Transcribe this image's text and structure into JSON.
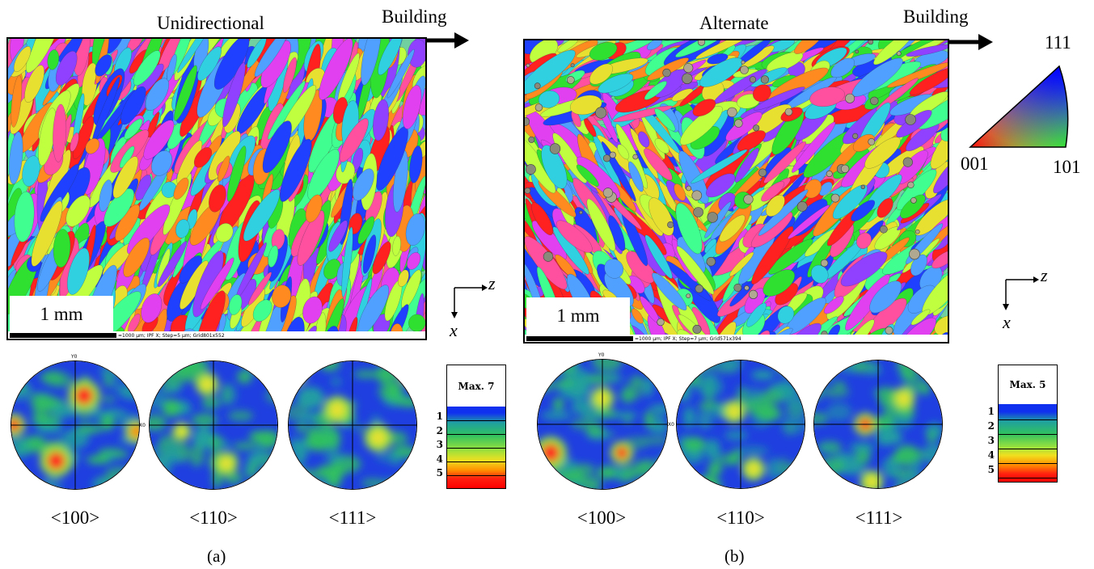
{
  "panel_a": {
    "title": "Unidirectional",
    "direction_label": "Building",
    "scale_text": "1 mm",
    "footer_text": "=1000 µm; IPF X; Step=5 µm; Grid801x552",
    "pf_labels": [
      "<100>",
      "<110>",
      "<111>"
    ],
    "legend_max": "Max. 7",
    "legend_ticks": [
      "1",
      "2",
      "3",
      "4",
      "5"
    ],
    "caption": "(a)"
  },
  "panel_b": {
    "title": "Alternate",
    "direction_label": "Building",
    "scale_text": "1 mm",
    "footer_text": "=1000 µm; IPF X; Step=7 µm; Grid571x394",
    "pf_labels": [
      "<100>",
      "<110>",
      "<111>"
    ],
    "legend_max": "Max. 5",
    "legend_ticks": [
      "1",
      "2",
      "3",
      "4",
      "5"
    ],
    "caption": "(b)"
  },
  "axes": {
    "horizontal": "z⃗",
    "vertical": "x⃗"
  },
  "ipf_key": {
    "top": "111",
    "left": "001",
    "right": "101"
  },
  "pf_axis_labels": {
    "y": "Y0",
    "x": "X0"
  },
  "colors": {
    "red": "#ff2020",
    "green": "#30e030",
    "blue": "#2040ff",
    "magenta": "#e040f0",
    "cyan": "#30d0e0",
    "yellow": "#e8e030",
    "pf_base": "#1f3fe0"
  }
}
